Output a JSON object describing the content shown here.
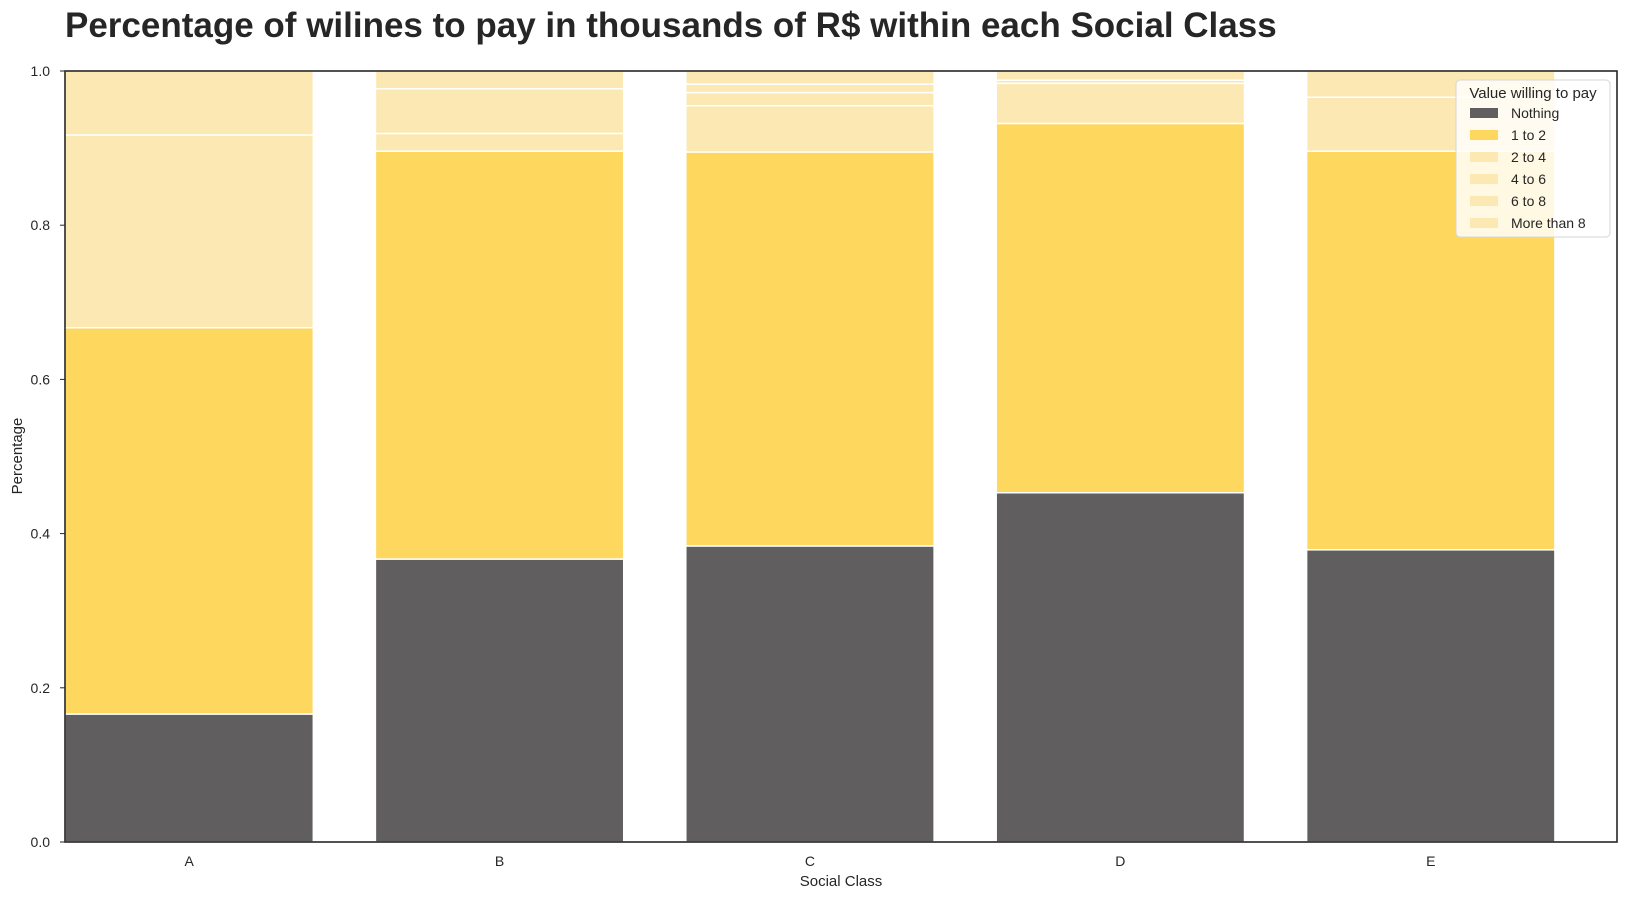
{
  "chart_data": {
    "type": "bar",
    "stacked": true,
    "title": "Percentage of wilines to pay in thousands of R$ within each Social Class",
    "xlabel": "Social Class",
    "ylabel": "Percentage",
    "ylim": [
      0,
      1
    ],
    "yticks": [
      "0.0",
      "0.2",
      "0.4",
      "0.6",
      "0.8",
      "1.0"
    ],
    "grid": false,
    "legend": {
      "title": "Value willing to pay",
      "position": "top-right"
    },
    "categories": [
      "A",
      "B",
      "C",
      "D",
      "E"
    ],
    "series": [
      {
        "name": "Nothing",
        "color": "#605e5e",
        "values": [
          0.166,
          0.367,
          0.384,
          0.453,
          0.379
        ]
      },
      {
        "name": "1 to 2",
        "color": "#fed75f",
        "values": [
          0.501,
          0.529,
          0.511,
          0.479,
          0.517
        ]
      },
      {
        "name": "2 to 4",
        "color": "#fbe8b2",
        "values": [
          0.25,
          0.023,
          0.06,
          0.052,
          0.07
        ]
      },
      {
        "name": "4 to 6",
        "color": "#fbe8b2",
        "values": [
          0.083,
          0.058,
          0.017,
          0.004,
          0.034
        ]
      },
      {
        "name": "6 to 8",
        "color": "#fbe8b2",
        "values": [
          0.0,
          0.0,
          0.011,
          0.0,
          0.0
        ]
      },
      {
        "name": "More than 8",
        "color": "#fbe8b2",
        "values": [
          0.0,
          0.023,
          0.017,
          0.012,
          0.0
        ]
      }
    ]
  }
}
